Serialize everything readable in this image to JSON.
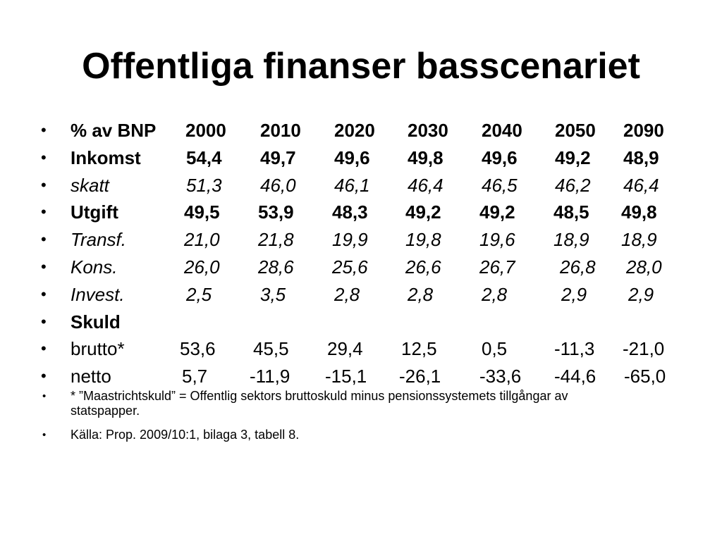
{
  "slide": {
    "title": "Offentliga finanser basscenariet",
    "bullet_glyph": "•",
    "rows": [
      {
        "label": "% av BNP",
        "style": "bold",
        "values": [
          "2000",
          "2010",
          "2020",
          "2030",
          "2040",
          "2050",
          "2090"
        ]
      },
      {
        "label": "Inkomst",
        "style": "bold",
        "values": [
          "54,4",
          "49,7",
          "49,6",
          "49,8",
          "49,6",
          "49,2",
          "48,9"
        ]
      },
      {
        "label": "skatt",
        "style": "italic",
        "values": [
          "51,3",
          "46,0",
          "46,1",
          "46,4",
          "46,5",
          "46,2",
          "46,4"
        ]
      },
      {
        "label": "Utgift",
        "style": "bold",
        "values": [
          "49,5",
          "53,9",
          "48,3",
          "49,2",
          "49,2",
          "48,5",
          "49,8"
        ]
      },
      {
        "label": "Transf.",
        "style": "italic",
        "values": [
          "21,0",
          "21,8",
          "19,9",
          "19,8",
          "19,6",
          "18,9",
          "18,9"
        ]
      },
      {
        "label": "Kons.",
        "style": "italic",
        "values": [
          "26,0",
          "28,6",
          "25,6",
          "26,6",
          "26,7",
          "26,8",
          "28,0"
        ]
      },
      {
        "label": "Invest.",
        "style": "italic",
        "values": [
          "2,5",
          "3,5",
          "2,8",
          "2,8",
          "2,8",
          "2,9",
          "2,9"
        ]
      },
      {
        "label": "Skuld",
        "style": "bold",
        "values": []
      },
      {
        "label": "brutto*",
        "style": "normal",
        "values": [
          "53,6",
          "45,5",
          "29,4",
          "12,5",
          "0,5",
          "-11,3",
          "-21,0"
        ]
      },
      {
        "label": "netto",
        "style": "normal",
        "values": [
          "5,7",
          "-11,9",
          "-15,1",
          "-26,1",
          "-33,6",
          "-44,6",
          "-65,0"
        ]
      }
    ],
    "notes": [
      "* ”Maastrichtskuld” = Offentlig sektors bruttoskuld minus pensionssystemets tillgångar av statspapper.",
      "Källa: Prop. 2009/10:1, bilaga 3, tabell 8."
    ]
  }
}
